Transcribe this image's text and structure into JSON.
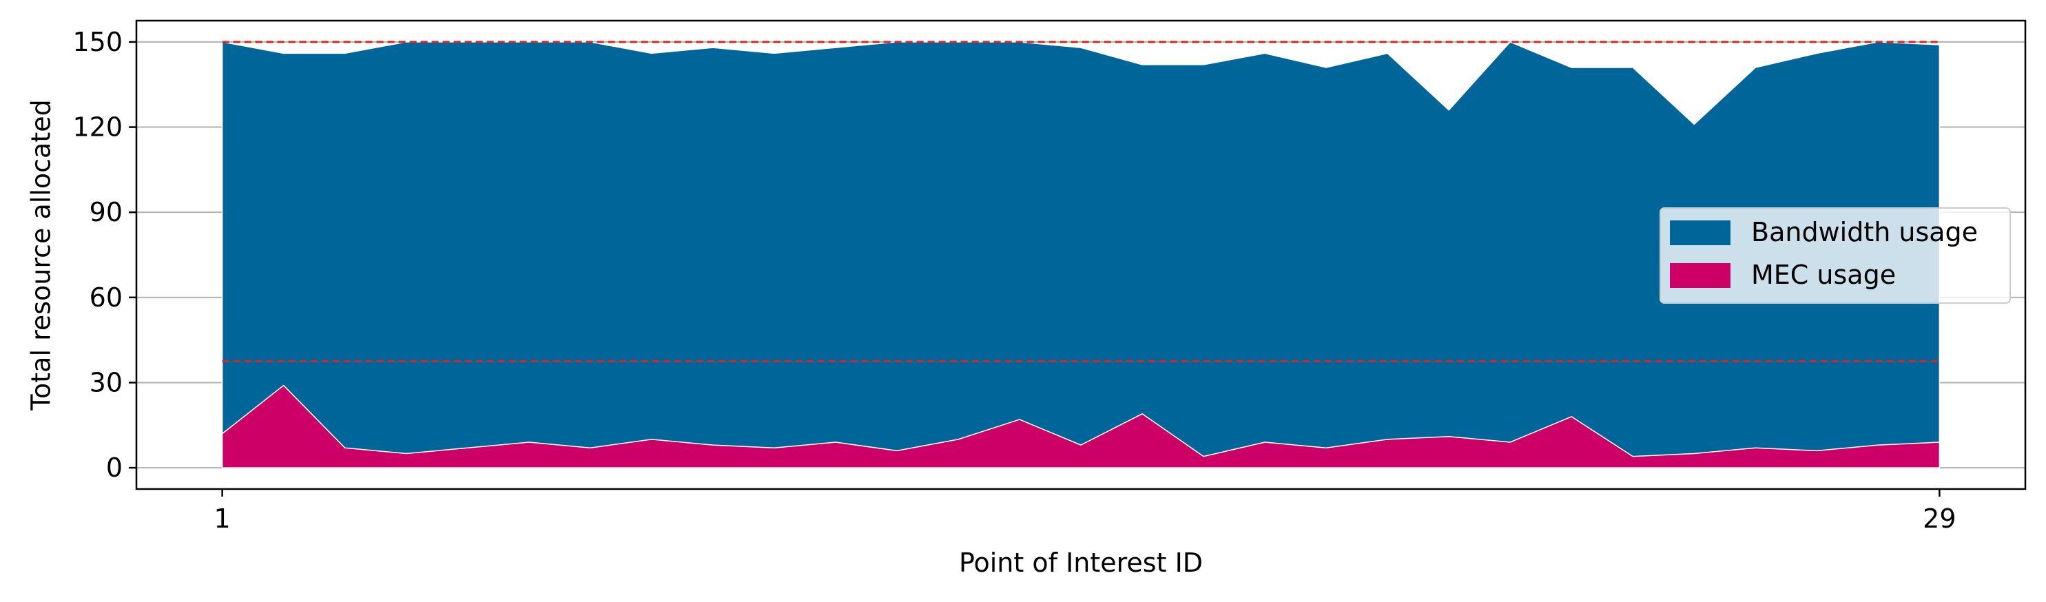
{
  "chart_data": {
    "type": "area",
    "stacked": true,
    "xlabel": "Point of Interest ID",
    "ylabel": "Total resource allocated",
    "x_tick_labels": [
      {
        "x": 1,
        "label": "1"
      },
      {
        "x": 29,
        "label": "29"
      }
    ],
    "y_ticks": [
      0,
      30,
      60,
      90,
      120,
      150
    ],
    "xlim": [
      -0.4,
      30.4
    ],
    "ylim": [
      -7.5,
      157.5
    ],
    "grid": {
      "y": true,
      "x": false
    },
    "x": [
      1,
      2,
      3,
      4,
      5,
      6,
      7,
      8,
      9,
      10,
      11,
      12,
      13,
      14,
      15,
      16,
      17,
      18,
      19,
      20,
      21,
      22,
      23,
      24,
      25,
      26,
      27,
      28,
      29
    ],
    "series": [
      {
        "name": "MEC usage",
        "color": "#cc0066",
        "values": [
          12,
          29,
          7,
          5,
          7,
          9,
          7,
          10,
          8,
          7,
          9,
          6,
          10,
          17,
          8,
          19,
          4,
          9,
          7,
          10,
          11,
          9,
          18,
          4,
          5,
          7,
          6,
          8,
          9
        ]
      },
      {
        "name": "Bandwidth usage",
        "color": "#006699",
        "total_values": [
          150,
          146,
          146,
          150,
          150,
          150,
          150,
          146,
          148,
          146,
          148,
          150,
          150,
          150,
          148,
          142,
          142,
          146,
          141,
          146,
          126,
          150,
          141,
          141,
          121,
          141,
          146,
          150,
          149
        ]
      }
    ],
    "reference_lines": [
      {
        "y": 150,
        "color": "#dd2222",
        "style": "dashed"
      },
      {
        "y": 37.5,
        "color": "#dd2222",
        "style": "dashed"
      }
    ],
    "legend": {
      "placement": "center-right",
      "entries": [
        {
          "label": "Bandwidth usage",
          "color": "#006699"
        },
        {
          "label": "MEC usage",
          "color": "#cc0066"
        }
      ]
    }
  }
}
